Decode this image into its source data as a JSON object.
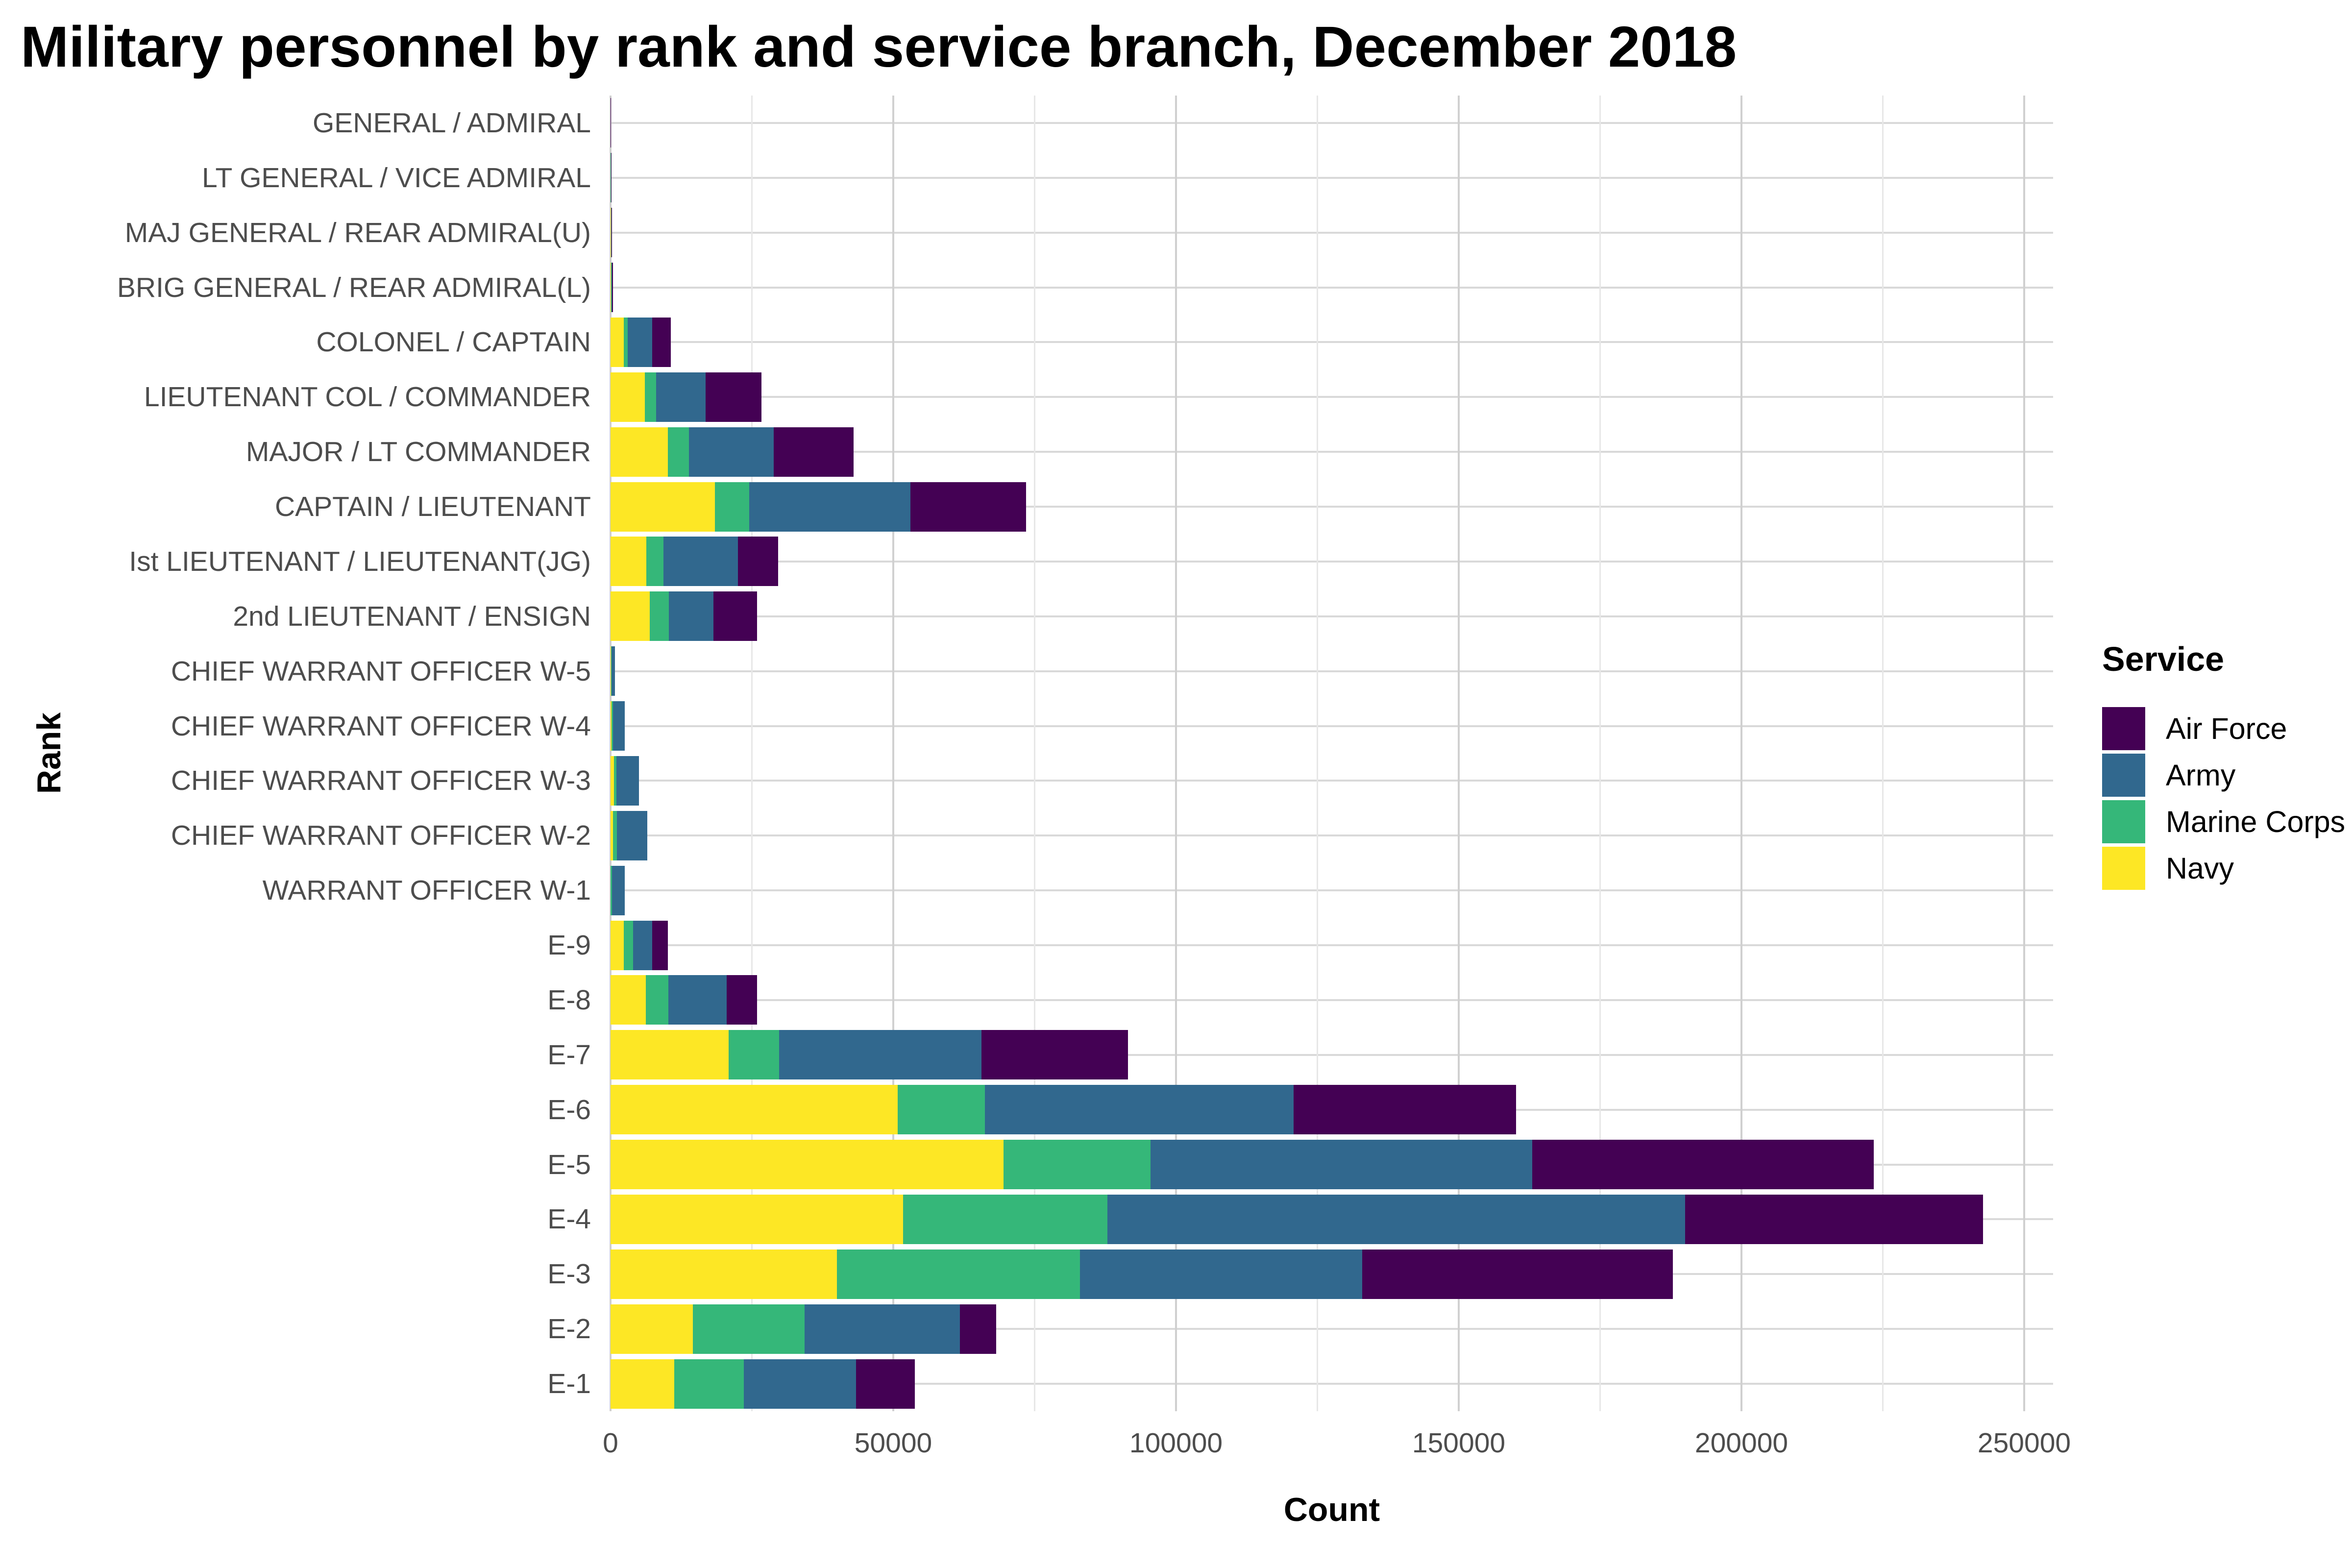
{
  "title": "Military personnel by rank and service branch, December 2018",
  "x_axis": {
    "label": "Count",
    "ticks": [
      0,
      50000,
      100000,
      150000,
      200000,
      250000
    ],
    "minor_ticks": [
      25000,
      75000,
      125000,
      175000,
      225000
    ],
    "max": 255000
  },
  "y_axis": {
    "label": "Rank"
  },
  "legend": {
    "title": "Service",
    "items": [
      {
        "label": "Air Force",
        "color": "#440154"
      },
      {
        "label": "Army",
        "color": "#31688E"
      },
      {
        "label": "Marine Corps",
        "color": "#35B779"
      },
      {
        "label": "Navy",
        "color": "#FDE725"
      }
    ]
  },
  "chart_data": {
    "type": "bar",
    "orientation": "horizontal",
    "stacked": true,
    "title": "Military personnel by rank and service branch, December 2018",
    "xlabel": "Count",
    "ylabel": "Rank",
    "xlim": [
      0,
      255000
    ],
    "grid": "major and minor vertical, major horizontal per category",
    "legend_position": "right",
    "categories": [
      "GENERAL / ADMIRAL",
      "LT GENERAL / VICE ADMIRAL",
      "MAJ GENERAL / REAR ADMIRAL(U)",
      "BRIG GENERAL / REAR ADMIRAL(L)",
      "COLONEL / CAPTAIN",
      "LIEUTENANT COL / COMMANDER",
      "MAJOR / LT COMMANDER",
      "CAPTAIN / LIEUTENANT",
      "Ist LIEUTENANT / LIEUTENANT(JG)",
      "2nd LIEUTENANT / ENSIGN",
      "CHIEF WARRANT OFFICER W-5",
      "CHIEF WARRANT OFFICER W-4",
      "CHIEF WARRANT OFFICER W-3",
      "CHIEF WARRANT OFFICER W-2",
      "WARRANT OFFICER W-1",
      "E-9",
      "E-8",
      "E-7",
      "E-6",
      "E-5",
      "E-4",
      "E-3",
      "E-2",
      "E-1"
    ],
    "series": [
      {
        "name": "Navy",
        "color": "#FDE725",
        "values": [
          9,
          36,
          60,
          110,
          2350,
          6100,
          10100,
          18500,
          6300,
          6900,
          60,
          170,
          600,
          430,
          0,
          2300,
          6200,
          20900,
          50800,
          69500,
          51700,
          40000,
          14600,
          11300
        ]
      },
      {
        "name": "Marine Corps",
        "color": "#35B779",
        "values": [
          3,
          17,
          29,
          32,
          700,
          2000,
          3800,
          6000,
          3100,
          3400,
          100,
          270,
          450,
          680,
          250,
          1700,
          4000,
          8900,
          15400,
          26000,
          36200,
          43000,
          19700,
          12300
        ]
      },
      {
        "name": "Army",
        "color": "#31688E",
        "values": [
          14,
          50,
          115,
          140,
          4300,
          8700,
          15000,
          28500,
          13100,
          7900,
          620,
          2100,
          3950,
          5400,
          2250,
          3400,
          10300,
          35800,
          54600,
          67500,
          102100,
          49900,
          27500,
          19800
        ]
      },
      {
        "name": "Air Force",
        "color": "#440154",
        "values": [
          13,
          44,
          96,
          150,
          3300,
          9900,
          14100,
          20500,
          7100,
          7700,
          0,
          0,
          0,
          0,
          0,
          2700,
          5400,
          25900,
          39300,
          60400,
          52700,
          55000,
          6400,
          10400
        ]
      }
    ]
  }
}
